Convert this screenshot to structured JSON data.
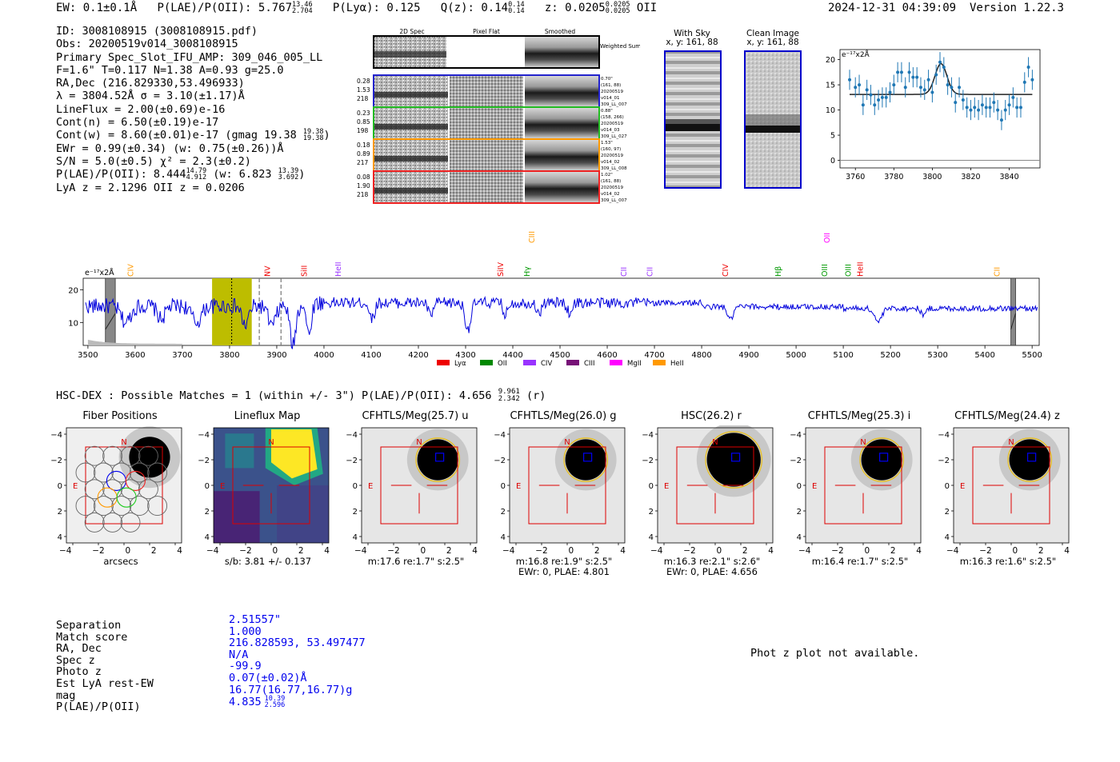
{
  "header": {
    "ew_text": "EW: 0.1±0.1Å",
    "plae_label": "P(LAE)/P(OII): 5.767",
    "plae_hi": "13.46",
    "plae_lo": "2.704",
    "plya_text": "P(Lyα): 0.125",
    "qz_label": "Q(z): 0.14",
    "qz_hi": "0.14",
    "qz_lo": "0.14",
    "z_label": "z: 0.0205",
    "z_hi": "0.0205",
    "z_lo": "0.0205",
    "z_line": "OII",
    "datetime": "2024-12-31 04:39:09",
    "version": "Version 1.22.3"
  },
  "info": {
    "id": "ID: 3008108915 (3008108915.pdf)",
    "obs": "Obs: 20200519v014_3008108915",
    "primary": "Primary Spec_Slot_IFU_AMP: 309_046_005_LL",
    "fparams": "F=1.6\"  T=0.117  N=1.38  A=0.93  g=25.0",
    "radec": "RA,Dec (216.829330,53.496933)",
    "lambda": "λ = 3804.52Å   σ = 3.10(±1.17)Å",
    "lineflux": "LineFlux = 2.00(±0.69)e-16",
    "contn": "Cont(n) = 6.50(±0.19)e-17",
    "contw": "Cont(w) = 8.60(±0.01)e-17 (gmag 19.38",
    "contw_hi": "19.38",
    "contw_lo": "19.38",
    "ewr": "EWr = 0.99(±0.34) (w: 0.75(±0.26))Å",
    "sn": "S/N = 5.0(±0.5)  χ² = 2.3(±0.2)",
    "plae": "P(LAE)/P(OII): 8.444",
    "plae_hi": "14.79",
    "plae_lo": "4.912",
    "plae_w": "(w: 6.823",
    "plae_w_hi": "13.39",
    "plae_w_lo": "3.692",
    "lyaz": "LyA z = 2.1296   OII z = 0.0206"
  },
  "spec2d": {
    "col_titles": [
      "2D Spec",
      "Pixel Flat",
      "Smoothed"
    ],
    "weighted_label": "Weighted Sum",
    "rows": [
      {
        "left": [
          "0.28",
          "1.53",
          "218"
        ],
        "right": [
          "0.70\"",
          "(161, 88)",
          "20200519",
          "v014_01",
          "309_LL_007"
        ],
        "color": "#2222cc"
      },
      {
        "left": [
          "0.23",
          "0.85",
          "198"
        ],
        "right": [
          "0.88\"",
          "(158, 266)",
          "20200519",
          "v014_03",
          "309_LL_027"
        ],
        "color": "#22bb22"
      },
      {
        "left": [
          "0.18",
          "0.89",
          "217"
        ],
        "right": [
          "1.53\"",
          "(160, 97)",
          "20200519",
          "v014_02",
          "309_LL_008"
        ],
        "color": "#ff9900"
      },
      {
        "left": [
          "0.08",
          "1.90",
          "218"
        ],
        "right": [
          "1.02\"",
          "(161, 88)",
          "20200519",
          "v014_02",
          "309_LL_007"
        ],
        "color": "#ee2222"
      }
    ]
  },
  "sky": {
    "with_sky_title": "With Sky",
    "with_sky_coords": "x, y: 161, 88",
    "clean_title": "Clean Image",
    "clean_coords": "x, y: 161, 88"
  },
  "zoom_plot": {
    "unit_label": "e⁻¹⁷x2Å",
    "xticks": [
      "3760",
      "3780",
      "3800",
      "3820",
      "3840"
    ],
    "yticks": [
      "0",
      "5",
      "10",
      "15",
      "20"
    ]
  },
  "full_spectrum": {
    "unit_label": "e⁻¹⁷x2Å",
    "xticks": [
      "3500",
      "3600",
      "3700",
      "3800",
      "3900",
      "4000",
      "4100",
      "4200",
      "4300",
      "4400",
      "4500",
      "4600",
      "4700",
      "4800",
      "4900",
      "5000",
      "5100",
      "5200",
      "5300",
      "5400",
      "5500"
    ],
    "yticks": [
      "10",
      "20"
    ],
    "lines": [
      {
        "name": "CIV",
        "wave": 3590,
        "color": "#ff9900",
        "row": 1
      },
      {
        "name": "NV",
        "wave": 3880,
        "color": "#ee0000",
        "row": 1
      },
      {
        "name": "SiII",
        "wave": 3958,
        "color": "#ee0000",
        "row": 1
      },
      {
        "name": "HeII",
        "wave": 4030,
        "color": "#9933ff",
        "row": 1
      },
      {
        "name": "SiIV",
        "wave": 4374,
        "color": "#ee0000",
        "row": 1
      },
      {
        "name": "CIII",
        "wave": 4440,
        "color": "#ff9900",
        "row": 0
      },
      {
        "name": "Hγ",
        "wave": 4430,
        "color": "#009900",
        "row": 1
      },
      {
        "name": "CII",
        "wave": 4635,
        "color": "#9933ff",
        "row": 1
      },
      {
        "name": "CII",
        "wave": 4690,
        "color": "#9933ff",
        "row": 1
      },
      {
        "name": "CIV",
        "wave": 4850,
        "color": "#ee0000",
        "row": 1
      },
      {
        "name": "Hβ",
        "wave": 4962,
        "color": "#009900",
        "row": 1
      },
      {
        "name": "OII",
        "wave": 5065,
        "color": "#ff00ff",
        "row": 0
      },
      {
        "name": "OIII",
        "wave": 5060,
        "color": "#009900",
        "row": 1
      },
      {
        "name": "OIII",
        "wave": 5110,
        "color": "#009900",
        "row": 1
      },
      {
        "name": "HeII",
        "wave": 5135,
        "color": "#ee0000",
        "row": 1
      },
      {
        "name": "CII",
        "wave": 5425,
        "color": "#ff9900",
        "row": 1
      }
    ],
    "legend": [
      {
        "name": "Lyα",
        "color": "#ee0000"
      },
      {
        "name": "OII",
        "color": "#008800"
      },
      {
        "name": "CIV",
        "color": "#9933ff"
      },
      {
        "name": "CIII",
        "color": "#771177"
      },
      {
        "name": "MgII",
        "color": "#ff00ff"
      },
      {
        "name": "HeII",
        "color": "#ff9900"
      }
    ]
  },
  "hsc_header": {
    "label": "HSC-DEX : Possible Matches = 1 (within +/- 3\")  P(LAE)/P(OII): 4.656",
    "hi": "9.961",
    "lo": "2.342",
    "band": "(r)"
  },
  "cutouts": [
    {
      "title": "Fiber Positions",
      "caption1": "arcsecs",
      "caption2": ""
    },
    {
      "title": "Lineflux Map",
      "caption1": "s/b: 3.81 +/- 0.137",
      "caption2": ""
    },
    {
      "title": "CFHTLS/Meg(25.7) u",
      "caption1": "m:17.6  re:1.7\"  s:2.5\"",
      "caption2": ""
    },
    {
      "title": "CFHTLS/Meg(26.0) g",
      "caption1": "m:16.8  re:1.9\"  s:2.5\"",
      "caption2": "EWr: 0, PLAE: 4.801"
    },
    {
      "title": "HSC(26.2) r",
      "caption1": "m:16.3  re:2.1\"  s:2.6\"",
      "caption2": "EWr: 0, PLAE: 4.656"
    },
    {
      "title": "CFHTLS/Meg(25.3) i",
      "caption1": "m:16.4  re:1.7\"  s:2.5\"",
      "caption2": ""
    },
    {
      "title": "CFHTLS/Meg(24.4) z",
      "caption1": "m:16.3  re:1.6\"  s:2.5\"",
      "caption2": ""
    }
  ],
  "cutout_axis": {
    "ticks": [
      "−4",
      "−2",
      "0",
      "2",
      "4"
    ],
    "north": "N",
    "east": "E"
  },
  "details": {
    "labels": [
      "Separation",
      "Match score",
      "RA, Dec",
      "Spec z",
      "Photo z",
      "Est LyA rest-EW",
      "mag",
      "P(LAE)/P(OII)"
    ],
    "values": [
      "2.51557\"",
      "1.000",
      "216.828593, 53.497477",
      "N/A",
      "-99.9",
      "0.07(±0.02)Å",
      "16.77(16.77,16.77)g",
      "4.835"
    ],
    "plae_hi": "10.39",
    "plae_lo": "2.596"
  },
  "photz_note": "Phot z plot not available.",
  "chart_data": [
    {
      "type": "scatter",
      "title": "",
      "xlabel": "",
      "ylabel": "e⁻¹⁷x2Å",
      "xlim": [
        3752,
        3856
      ],
      "ylim": [
        -1.5,
        22
      ],
      "x": [
        3757,
        3760,
        3762,
        3764,
        3766,
        3768,
        3770,
        3772,
        3774,
        3776,
        3778,
        3780,
        3782,
        3784,
        3786,
        3788,
        3790,
        3792,
        3794,
        3796,
        3798,
        3800,
        3802,
        3804,
        3806,
        3808,
        3810,
        3812,
        3814,
        3816,
        3818,
        3820,
        3822,
        3824,
        3826,
        3828,
        3830,
        3832,
        3834,
        3836,
        3838,
        3840,
        3842,
        3844,
        3846,
        3848,
        3850,
        3852
      ],
      "y": [
        16,
        14.5,
        15,
        11,
        14,
        13,
        11,
        12,
        12.5,
        12.5,
        13.5,
        15,
        17.5,
        17.5,
        14.5,
        17.5,
        16.5,
        16.5,
        14.5,
        14,
        16,
        13.5,
        17,
        19.5,
        18.5,
        15,
        14.5,
        11.5,
        14.5,
        12,
        10.5,
        10,
        10.5,
        10,
        11,
        10.5,
        10.5,
        11.5,
        10,
        8,
        10,
        11,
        12.5,
        10.5,
        10.5,
        15.5,
        18.5,
        16
      ],
      "err": 2,
      "fit": {
        "continuum": 13.1,
        "peak": 19.2,
        "center": 3804.5,
        "sigma": 3.1
      }
    },
    {
      "type": "line",
      "title": "",
      "xlabel": "",
      "ylabel": "e⁻¹⁷x2Å",
      "xlim": [
        3490,
        5515
      ],
      "ylim": [
        3,
        23.5
      ],
      "continuum": 16,
      "features": [
        {
          "x": 3580,
          "depth": 5,
          "width": 10
        },
        {
          "x": 3655,
          "depth": 4,
          "width": 8
        },
        {
          "x": 3730,
          "depth": 5,
          "width": 10
        },
        {
          "x": 3833,
          "depth": 6,
          "width": 7
        },
        {
          "x": 3890,
          "depth": 6,
          "width": 8
        },
        {
          "x": 3934,
          "depth": 12,
          "width": 6
        },
        {
          "x": 3968,
          "depth": 10,
          "width": 5
        },
        {
          "x": 4102,
          "depth": 5,
          "width": 5
        },
        {
          "x": 4226,
          "depth": 4,
          "width": 5
        },
        {
          "x": 4305,
          "depth": 8,
          "width": 6
        },
        {
          "x": 4384,
          "depth": 4,
          "width": 4
        },
        {
          "x": 4455,
          "depth": 4,
          "width": 4
        },
        {
          "x": 4520,
          "depth": 3,
          "width": 5
        },
        {
          "x": 4861,
          "depth": 4,
          "width": 6
        },
        {
          "x": 5174,
          "depth": 4,
          "width": 8
        },
        {
          "x": 5270,
          "depth": 2,
          "width": 5
        }
      ],
      "highlight_band": [
        3763,
        3847
      ],
      "marker_line": 3804.5,
      "dashed_lines": [
        3863,
        3909
      ],
      "masked_regions": [
        [
          3537,
          3558
        ],
        [
          5455,
          5465
        ]
      ]
    }
  ]
}
